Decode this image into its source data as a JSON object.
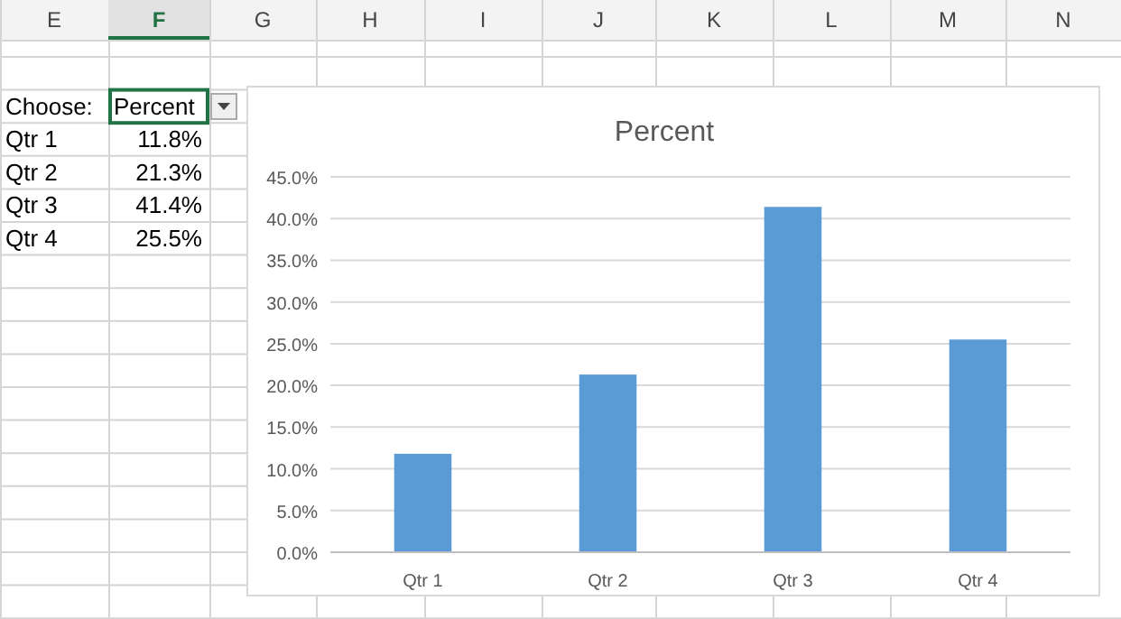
{
  "chart_data": {
    "type": "bar",
    "title": "Percent",
    "categories": [
      "Qtr 1",
      "Qtr 2",
      "Qtr 3",
      "Qtr 4"
    ],
    "values": [
      11.8,
      21.3,
      41.4,
      25.5
    ],
    "color": "#5b9bd5",
    "ylim": [
      0,
      45
    ],
    "yticks": [
      {
        "value": 0,
        "label": "0.0%"
      },
      {
        "value": 5,
        "label": "5.0%"
      },
      {
        "value": 10,
        "label": "10.0%"
      },
      {
        "value": 15,
        "label": "15.0%"
      },
      {
        "value": 20,
        "label": "20.0%"
      },
      {
        "value": 25,
        "label": "25.0%"
      },
      {
        "value": 30,
        "label": "30.0%"
      },
      {
        "value": 35,
        "label": "35.0%"
      },
      {
        "value": 40,
        "label": "40.0%"
      },
      {
        "value": 45,
        "label": "45.0%"
      }
    ],
    "grid": "y",
    "legend": false,
    "annotations": [
      "Choose:",
      "Percent",
      "11.8%",
      "21.3%",
      "41.4%",
      "25.5%",
      "E",
      "F",
      "G",
      "H",
      "I",
      "J",
      "K",
      "L",
      "M",
      "N"
    ]
  }
}
